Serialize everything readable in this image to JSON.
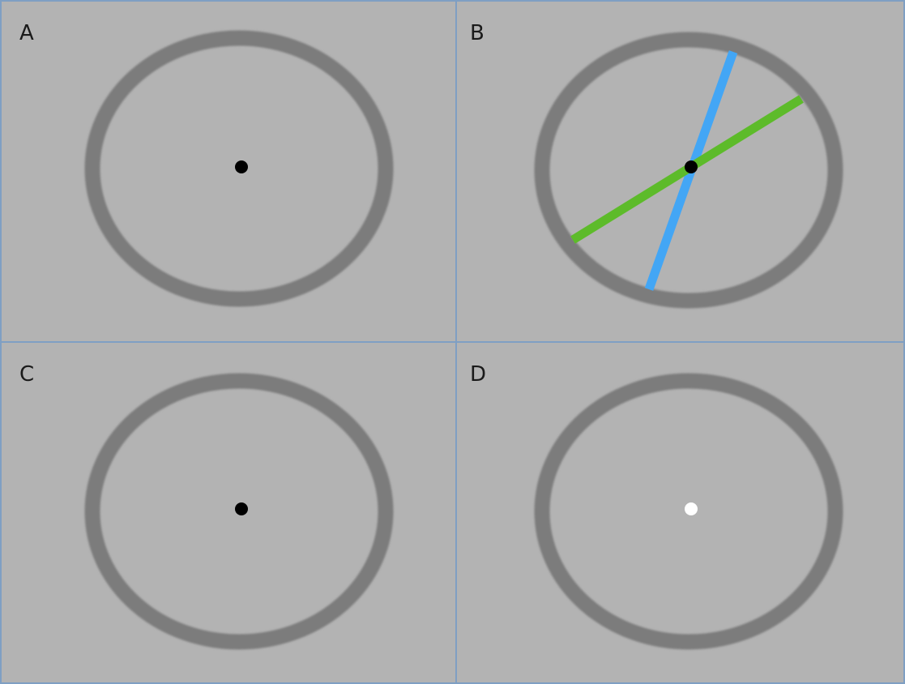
{
  "colors": {
    "background": "#b3b3b3",
    "divider": "#7f9fc3",
    "ring": "#7b7b7b",
    "fixation_dark": "#000000",
    "fixation_light": "#ffffff",
    "line_blue": "#43a6f5",
    "line_green": "#5dbb2a"
  },
  "panels": [
    {
      "label": "A",
      "fixation": "dark",
      "lines": []
    },
    {
      "label": "B",
      "fixation": "dark",
      "lines": [
        "blue",
        "green"
      ]
    },
    {
      "label": "C",
      "fixation": "dark",
      "lines": []
    },
    {
      "label": "D",
      "fixation": "light",
      "lines": []
    }
  ]
}
